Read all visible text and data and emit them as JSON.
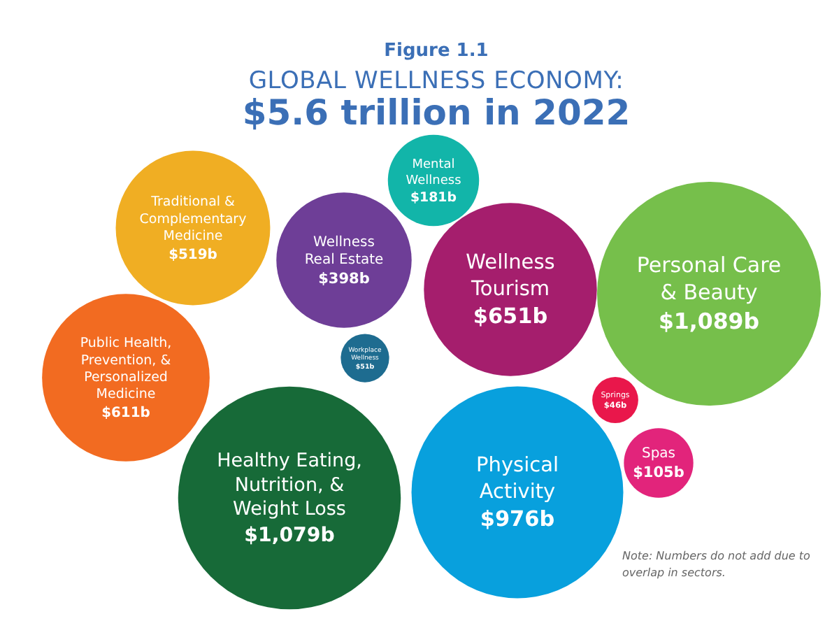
{
  "chart_data": {
    "type": "other",
    "title": "GLOBAL WELLNESS ECONOMY:",
    "subtitle": "$5.6 trillion in 2022",
    "annotations": [
      "Figure 1.1",
      "Note: Numbers do not add due to overlap in sectors."
    ],
    "categories": [
      "Traditional & Complementary Medicine",
      "Mental Wellness",
      "Wellness Real Estate",
      "Wellness Tourism",
      "Personal Care & Beauty",
      "Public Health, Prevention, & Personalized Medicine",
      "Workplace Wellness",
      "Springs",
      "Spas",
      "Healthy Eating, Nutrition, & Weight Loss",
      "Physical Activity"
    ],
    "values": [
      519,
      181,
      398,
      651,
      1089,
      611,
      51,
      46,
      105,
      1079,
      976
    ],
    "value_labels": [
      "$519b",
      "$181b",
      "$398b",
      "$651b",
      "$1,089b",
      "$611b",
      "$51b",
      "$46b",
      "$105b",
      "$1,079b",
      "$976b"
    ],
    "colors": [
      "#f0ae23",
      "#12b5a9",
      "#6e3e97",
      "#a51e6d",
      "#76bf4b",
      "#f26b21",
      "#1e6c90",
      "#e9174b",
      "#e2247b",
      "#176a38",
      "#08a0dd"
    ]
  }
}
